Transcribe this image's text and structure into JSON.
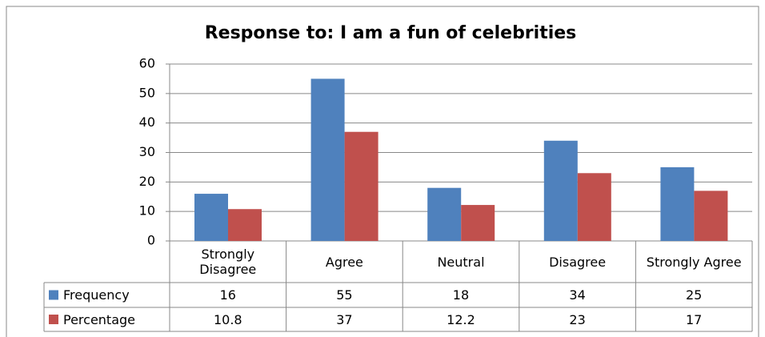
{
  "chart_data": {
    "type": "bar",
    "title": "Response to: I am a fun of celebrities",
    "categories": [
      "Strongly Disagree",
      "Agree",
      "Neutral",
      "Disagree",
      "Strongly Agree"
    ],
    "series": [
      {
        "name": "Frequency",
        "color": "#4f81bd",
        "values": [
          16,
          55,
          18,
          34,
          25
        ]
      },
      {
        "name": "Percentage",
        "color": "#c0504d",
        "values": [
          10.8,
          37,
          12.2,
          23,
          17
        ]
      }
    ],
    "ylim": [
      0,
      60
    ],
    "yticks": [
      0,
      10,
      20,
      30,
      40,
      50,
      60
    ],
    "grid": true
  }
}
